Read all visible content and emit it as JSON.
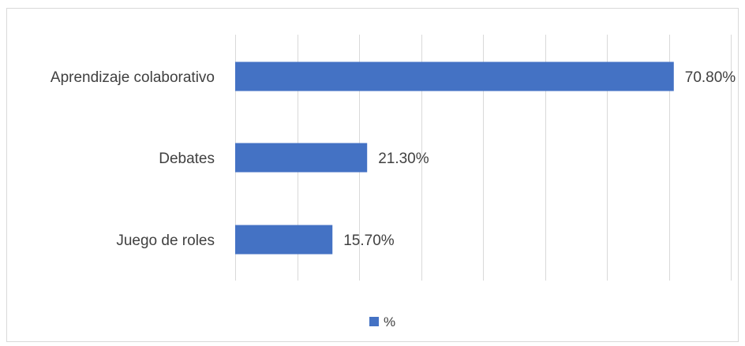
{
  "chart_data": {
    "type": "bar",
    "orientation": "horizontal",
    "categories": [
      "Aprendizaje colaborativo",
      "Debates",
      "Juego de roles"
    ],
    "series": [
      {
        "name": "%",
        "values": [
          70.8,
          21.3,
          15.7
        ],
        "labels": [
          "70.80%",
          "21.30%",
          "15.70%"
        ],
        "color": "#4472C4"
      }
    ],
    "xlim": [
      0,
      80
    ],
    "grid": true,
    "legend_position": "bottom"
  }
}
